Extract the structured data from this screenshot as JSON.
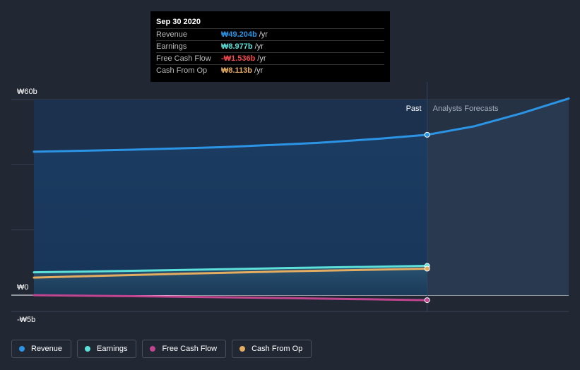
{
  "tooltip": {
    "date": "Sep 30 2020",
    "rows": [
      {
        "label": "Revenue",
        "value": "₩49.204b",
        "unit": "/yr",
        "color": "#2b94e4"
      },
      {
        "label": "Earnings",
        "value": "₩8.977b",
        "unit": "/yr",
        "color": "#5ce0d9"
      },
      {
        "label": "Free Cash Flow",
        "value": "-₩1.536b",
        "unit": "/yr",
        "color": "#f0494f"
      },
      {
        "label": "Cash From Op",
        "value": "₩8.113b",
        "unit": "/yr",
        "color": "#e4ac60"
      }
    ]
  },
  "legend": [
    {
      "label": "Revenue",
      "color": "#2b94e4"
    },
    {
      "label": "Earnings",
      "color": "#5ce0d9"
    },
    {
      "label": "Free Cash Flow",
      "color": "#c0458f"
    },
    {
      "label": "Cash From Op",
      "color": "#e4ac60"
    }
  ],
  "chart_data": {
    "type": "line",
    "ylim": [
      -5,
      60
    ],
    "y_tick_labels": [
      {
        "value": 60,
        "label": "₩60b"
      },
      {
        "value": 0,
        "label": "₩0"
      },
      {
        "value": -5,
        "label": "-₩5b"
      }
    ],
    "gridlines": [
      60,
      40,
      20,
      0,
      -5
    ],
    "x_range": [
      2014.5,
      2023.0
    ],
    "divider_x": 2020.75,
    "past_label": "Past",
    "forecast_label": "Analysts Forecasts",
    "series": [
      {
        "name": "Revenue",
        "color": "#2b94e4",
        "x": [
          2014.5,
          2016.0,
          2017.5,
          2019.0,
          2020.0,
          2020.75
        ],
        "values": [
          44.0,
          44.6,
          45.4,
          46.7,
          48.0,
          49.2
        ]
      },
      {
        "name": "Revenue Forecast",
        "color": "#2b94e4",
        "x": [
          2020.75,
          2021.5,
          2022.25,
          2023.0
        ],
        "values": [
          49.2,
          51.8,
          55.8,
          60.3
        ]
      },
      {
        "name": "Earnings",
        "color": "#5ce0d9",
        "x": [
          2014.5,
          2016.5,
          2018.5,
          2020.75
        ],
        "values": [
          7.0,
          7.6,
          8.3,
          8.977
        ]
      },
      {
        "name": "Cash From Op",
        "color": "#e4ac60",
        "x": [
          2014.5,
          2016.5,
          2018.5,
          2020.75
        ],
        "values": [
          5.4,
          6.4,
          7.3,
          8.113
        ]
      },
      {
        "name": "Free Cash Flow",
        "color": "#c0458f",
        "x": [
          2014.5,
          2016.5,
          2018.5,
          2020.75
        ],
        "values": [
          0.0,
          -0.4,
          -0.9,
          -1.536
        ]
      }
    ]
  }
}
